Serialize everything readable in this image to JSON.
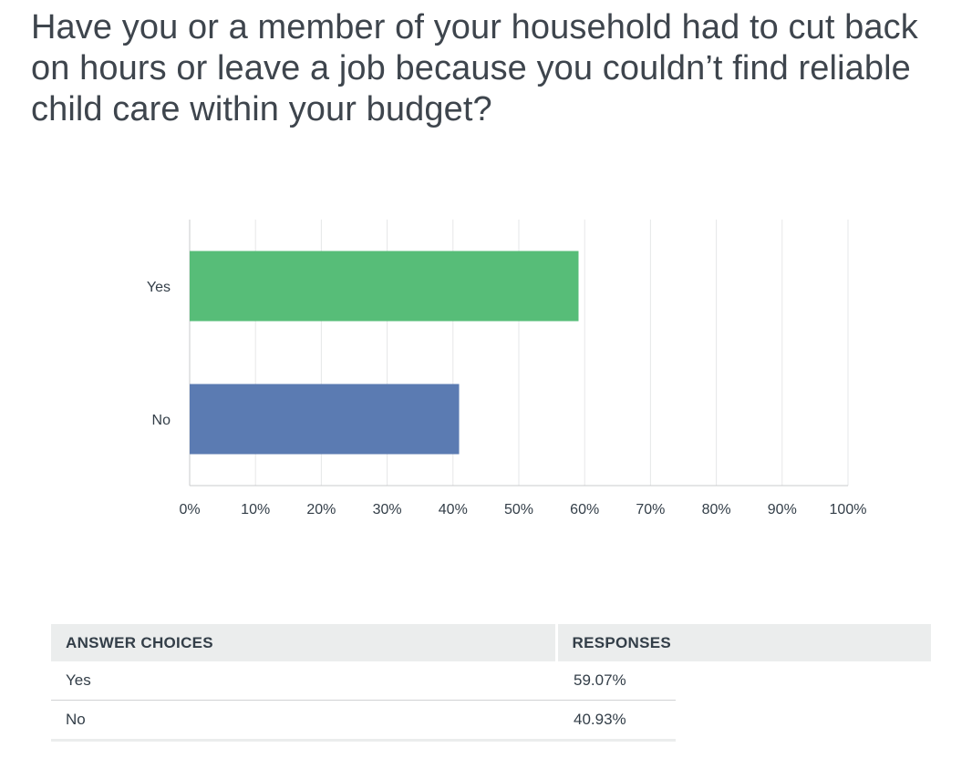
{
  "question": {
    "title": "Have you or a member of your household had to cut back on hours or leave a job because you couldn’t find reliable child care within your budget?"
  },
  "chart_data": {
    "type": "bar",
    "orientation": "horizontal",
    "categories": [
      "Yes",
      "No"
    ],
    "values": [
      59.07,
      40.93
    ],
    "colors": [
      "#57bd78",
      "#5b7bb2"
    ],
    "xlim": [
      0,
      100
    ],
    "xticks": [
      "0%",
      "10%",
      "20%",
      "30%",
      "40%",
      "50%",
      "60%",
      "70%",
      "80%",
      "90%",
      "100%"
    ],
    "grid": true
  },
  "table": {
    "headers": {
      "choices": "ANSWER CHOICES",
      "responses": "RESPONSES"
    },
    "rows": [
      {
        "choice": "Yes",
        "response": "59.07%"
      },
      {
        "choice": "No",
        "response": "40.93%"
      }
    ]
  }
}
